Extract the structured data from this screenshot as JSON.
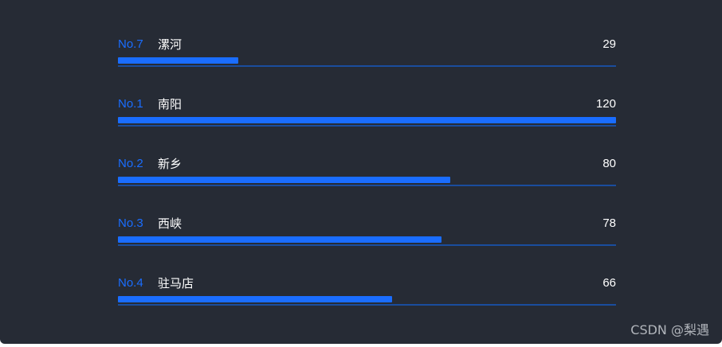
{
  "chart_data": {
    "type": "bar",
    "orientation": "horizontal",
    "title": "",
    "xlabel": "",
    "ylabel": "",
    "xlim": [
      0,
      120
    ],
    "grid": false,
    "legend": "none",
    "categories": [
      "漯河",
      "南阳",
      "新乡",
      "西峡",
      "驻马店"
    ],
    "ranks": [
      "No.7",
      "No.1",
      "No.2",
      "No.3",
      "No.4"
    ],
    "values": [
      29,
      120,
      80,
      78,
      66
    ],
    "value_labels": [
      "29",
      "120",
      "80",
      "78",
      "66"
    ],
    "colors": {
      "bar": "#1a6dff",
      "track": "#1a4d9e",
      "rank_text": "#1a6dff",
      "label_text": "#ffffff",
      "background": "#262b35"
    }
  },
  "watermark": "CSDN @梨遇"
}
